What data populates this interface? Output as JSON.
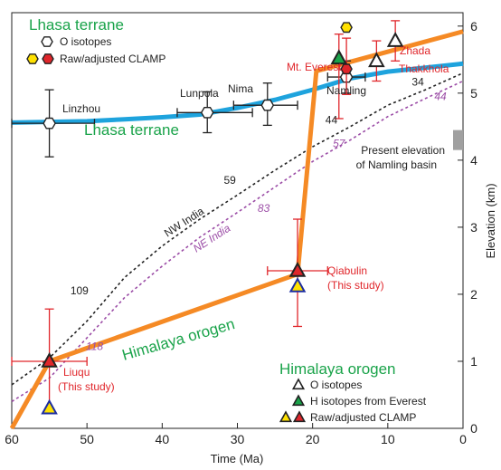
{
  "colors": {
    "lhasa": "#1ea3dd",
    "himalaya": "#f58a25",
    "error": "#e0262b",
    "title_green": "#1aa34a",
    "nw_india": "#222222",
    "ne_india": "#9b4ca6",
    "clamp_yellow": "#ffe100",
    "clamp_red": "#e0262b",
    "h_green": "#1aa34a",
    "present_bar": "#a0a0a0"
  },
  "chart_data": {
    "type": "line",
    "xlabel": "Time (Ma)",
    "ylabel": "Elevation (km)",
    "xlim": [
      60,
      0
    ],
    "ylim": [
      0,
      6.2
    ],
    "x_ticks": [
      60,
      50,
      40,
      30,
      20,
      10,
      0
    ],
    "y_ticks": [
      0,
      1,
      2,
      3,
      4,
      5,
      6
    ],
    "series": [
      {
        "name": "Lhasa terrane",
        "style": "solid-thick",
        "x": [
          60,
          55,
          50,
          45,
          40,
          35,
          30,
          25,
          20,
          15,
          10,
          5,
          0
        ],
        "y": [
          4.56,
          4.57,
          4.58,
          4.61,
          4.64,
          4.68,
          4.78,
          4.9,
          5.05,
          5.22,
          5.32,
          5.38,
          5.44
        ]
      },
      {
        "name": "Himalaya orogen",
        "style": "solid-thick",
        "x": [
          60,
          55,
          22,
          19.5,
          0
        ],
        "y": [
          0,
          1.0,
          2.3,
          5.33,
          5.92
        ]
      },
      {
        "name": "NW India",
        "style": "dashed",
        "x": [
          60,
          55,
          50,
          45,
          40,
          35,
          30,
          25,
          20,
          15,
          10,
          5,
          0
        ],
        "y": [
          0.65,
          1.05,
          1.6,
          2.25,
          2.72,
          3.12,
          3.48,
          3.85,
          4.2,
          4.5,
          4.82,
          5.05,
          5.3
        ]
      },
      {
        "name": "NE India",
        "style": "dashed",
        "x": [
          60,
          55,
          50,
          45,
          40,
          35,
          30,
          25,
          20,
          15,
          10,
          5,
          0
        ],
        "y": [
          0.4,
          0.75,
          1.35,
          1.95,
          2.42,
          2.85,
          3.22,
          3.6,
          3.98,
          4.3,
          4.65,
          4.92,
          5.18
        ]
      }
    ],
    "curve_labels": [
      {
        "text": "109",
        "curve": "NW India",
        "x": 51,
        "y": 2.05
      },
      {
        "text": "59",
        "curve": "NW India",
        "x": 31,
        "y": 3.7
      },
      {
        "text": "44",
        "curve": "NW India",
        "x": 17.5,
        "y": 4.6
      },
      {
        "text": "34",
        "curve": "NW India",
        "x": 6,
        "y": 5.17
      },
      {
        "text": "118",
        "curve": "NE India",
        "x": 49,
        "y": 1.22
      },
      {
        "text": "83",
        "curve": "NE India",
        "x": 26.5,
        "y": 3.28
      },
      {
        "text": "57",
        "curve": "NE India",
        "x": 16.5,
        "y": 4.25
      },
      {
        "text": "44",
        "curve": "NE India",
        "x": 3,
        "y": 4.95
      }
    ],
    "lhasa_o_isotopes": [
      {
        "label": "Linzhou",
        "x": 55,
        "y": 4.55,
        "xerr": [
          60,
          49
        ],
        "yerr": [
          4.05,
          5.05
        ]
      },
      {
        "label": "Lunpola",
        "x": 34,
        "y": 4.71,
        "xerr": [
          38,
          28
        ],
        "yerr": [
          4.41,
          5.02
        ]
      },
      {
        "label": "Nima",
        "x": 26,
        "y": 4.82,
        "xerr": [
          30.5,
          22
        ],
        "yerr": [
          4.52,
          5.15
        ]
      },
      {
        "label": "Namling",
        "x": 15.5,
        "y": 5.24,
        "xerr": [
          18,
          13
        ],
        "yerr": [
          5.0,
          5.48
        ]
      }
    ],
    "lhasa_clamp": {
      "x": 15.5,
      "yellow_y": 5.98,
      "red_y": 5.36,
      "yerr": [
        4.98,
        5.82
      ]
    },
    "himalaya_points": [
      {
        "label": "Liuqu",
        "sublabel": "(This study)",
        "x": 55,
        "clamp_red_y": 1.0,
        "clamp_yellow_y": 0.3,
        "xerr": [
          60,
          50
        ],
        "yerr": [
          0.25,
          1.78
        ]
      },
      {
        "label": "Qiabulin",
        "sublabel": "(This study)",
        "x": 22,
        "clamp_red_y": 2.35,
        "clamp_yellow_y": 2.12,
        "xerr": [
          26,
          18
        ],
        "yerr": [
          1.52,
          3.12
        ]
      }
    ],
    "himalaya_o_isotopes": [
      {
        "label": "Zhada",
        "x": 9,
        "y": 5.78,
        "yerr": [
          5.48,
          6.08
        ]
      },
      {
        "label": "Thakkhola",
        "x": 11.5,
        "y": 5.48,
        "yerr": [
          5.18,
          5.78
        ]
      }
    ],
    "everest_h": {
      "label": "Mt. Everest",
      "x": 16.5,
      "y": 5.52,
      "yerr": [
        4.62,
        5.88
      ]
    },
    "present_elevation": {
      "label_line1": "Present elevation",
      "label_line2": "of Namling basin",
      "y": 4.3
    },
    "region_labels": {
      "lhasa": "Lhasa terrane",
      "himalaya": "Himalaya orogen",
      "nw": "NW India",
      "ne": "NE India"
    }
  },
  "legends": {
    "lhasa": {
      "title": "Lhasa terrane",
      "o_isotopes": "O isotopes",
      "clamp": "Raw/adjusted CLAMP"
    },
    "himalaya": {
      "title": "Himalaya orogen",
      "o_isotopes": "O isotopes",
      "h_isotopes": "H isotopes from Everest",
      "clamp": "Raw/adjusted CLAMP"
    }
  }
}
